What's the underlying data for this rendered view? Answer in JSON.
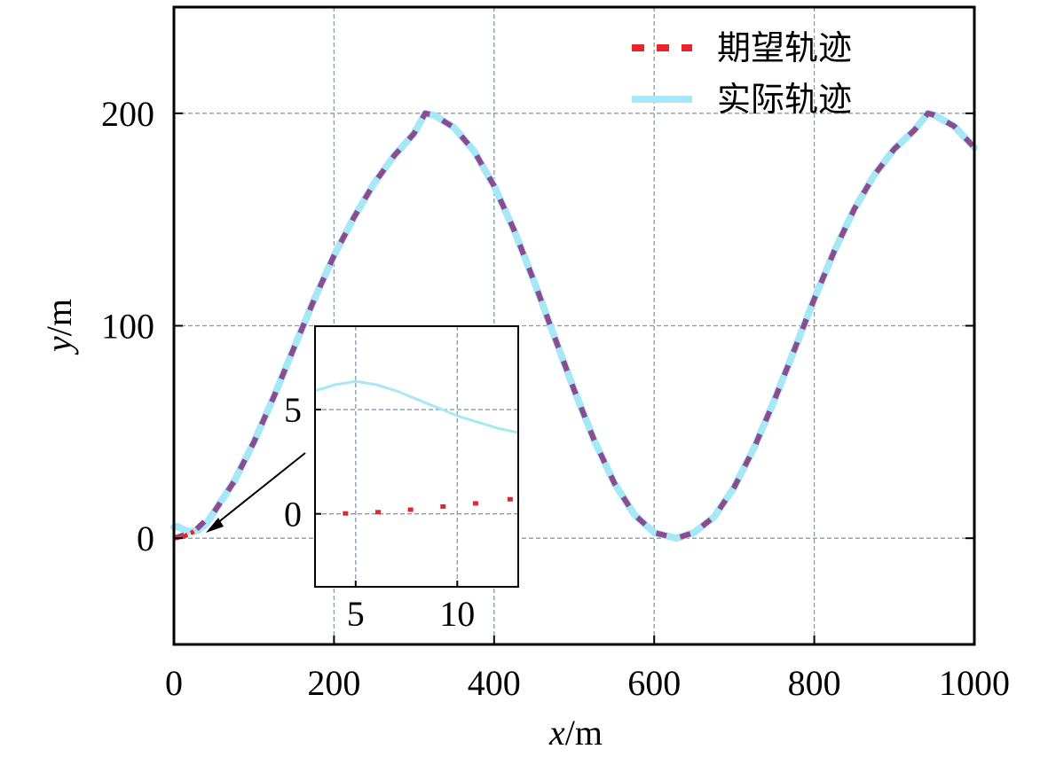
{
  "chart_data": {
    "type": "line",
    "xlabel_var": "x",
    "xlabel_unit": "/m",
    "ylabel_var": "y",
    "ylabel_unit": "/m",
    "xlim": [
      0,
      1000
    ],
    "ylim": [
      -50,
      250
    ],
    "xticks": [
      0,
      200,
      400,
      600,
      800,
      1000
    ],
    "yticks": [
      0,
      100,
      200
    ],
    "grid": true,
    "legend_position": "top-right",
    "series": [
      {
        "name": "期望轨迹",
        "style": "dashed",
        "color": "#e8252b",
        "overlay_color": "#8e4a8e",
        "x": [
          0,
          25,
          50,
          75,
          100,
          125,
          150,
          175,
          200,
          225,
          250,
          275,
          300,
          314,
          325,
          350,
          375,
          400,
          425,
          450,
          475,
          500,
          525,
          550,
          575,
          600,
          628,
          650,
          675,
          700,
          725,
          750,
          775,
          800,
          825,
          850,
          875,
          900,
          925,
          942,
          950,
          975,
          1000
        ],
        "y": [
          0,
          3.1,
          12.2,
          26.6,
          45.3,
          66.8,
          89.6,
          112.2,
          133.0,
          151.1,
          167.0,
          180.0,
          190.5,
          200,
          199.1,
          193.3,
          182.2,
          165.8,
          145.0,
          120.9,
          95.2,
          69.8,
          46.2,
          26.1,
          11.2,
          2.6,
          0,
          2.7,
          10.1,
          24.0,
          42.6,
          64.8,
          88.6,
          112.6,
          135.1,
          154.9,
          171.0,
          183.2,
          192.0,
          200,
          199.2,
          193.9,
          183.9
        ]
      },
      {
        "name": "实际轨迹",
        "style": "solid",
        "color": "#a8e8f5",
        "x": [
          0,
          5,
          10,
          15,
          20,
          30,
          40,
          50,
          75,
          100,
          125,
          150,
          175,
          200,
          225,
          250,
          275,
          300,
          314,
          325,
          350,
          375,
          400,
          425,
          450,
          475,
          500,
          525,
          550,
          575,
          600,
          628,
          650,
          675,
          700,
          725,
          750,
          775,
          800,
          825,
          850,
          875,
          900,
          925,
          942,
          950,
          975,
          1000
        ],
        "y": [
          5.2,
          5.5,
          4.5,
          3.6,
          3.1,
          3.6,
          6.6,
          12.2,
          26.6,
          45.3,
          66.8,
          89.6,
          112.2,
          133.0,
          151.1,
          167.0,
          180.0,
          190.5,
          200,
          199.1,
          193.3,
          182.2,
          165.8,
          145.0,
          120.9,
          95.2,
          69.8,
          46.2,
          26.1,
          11.2,
          2.6,
          0,
          2.7,
          10.1,
          24.0,
          42.6,
          64.8,
          88.6,
          112.6,
          135.1,
          154.9,
          171.0,
          183.2,
          192.0,
          200,
          199.2,
          193.9,
          183.9
        ]
      }
    ],
    "inset": {
      "xlim": [
        3,
        13
      ],
      "ylim": [
        -3.5,
        9
      ],
      "xticks": [
        5,
        10
      ],
      "yticks": [
        0,
        5
      ],
      "expected_points": {
        "x": [
          4.5,
          6.1,
          7.7,
          9.3,
          10.9,
          12.6
        ],
        "y": [
          0.02,
          0.08,
          0.2,
          0.35,
          0.5,
          0.7
        ]
      },
      "actual_curve": {
        "x": [
          3,
          4,
          5,
          6,
          7,
          8,
          9,
          10,
          11,
          12,
          13
        ],
        "y": [
          5.9,
          6.2,
          6.35,
          6.2,
          5.9,
          5.5,
          5.1,
          4.7,
          4.4,
          4.1,
          3.9
        ]
      }
    }
  }
}
